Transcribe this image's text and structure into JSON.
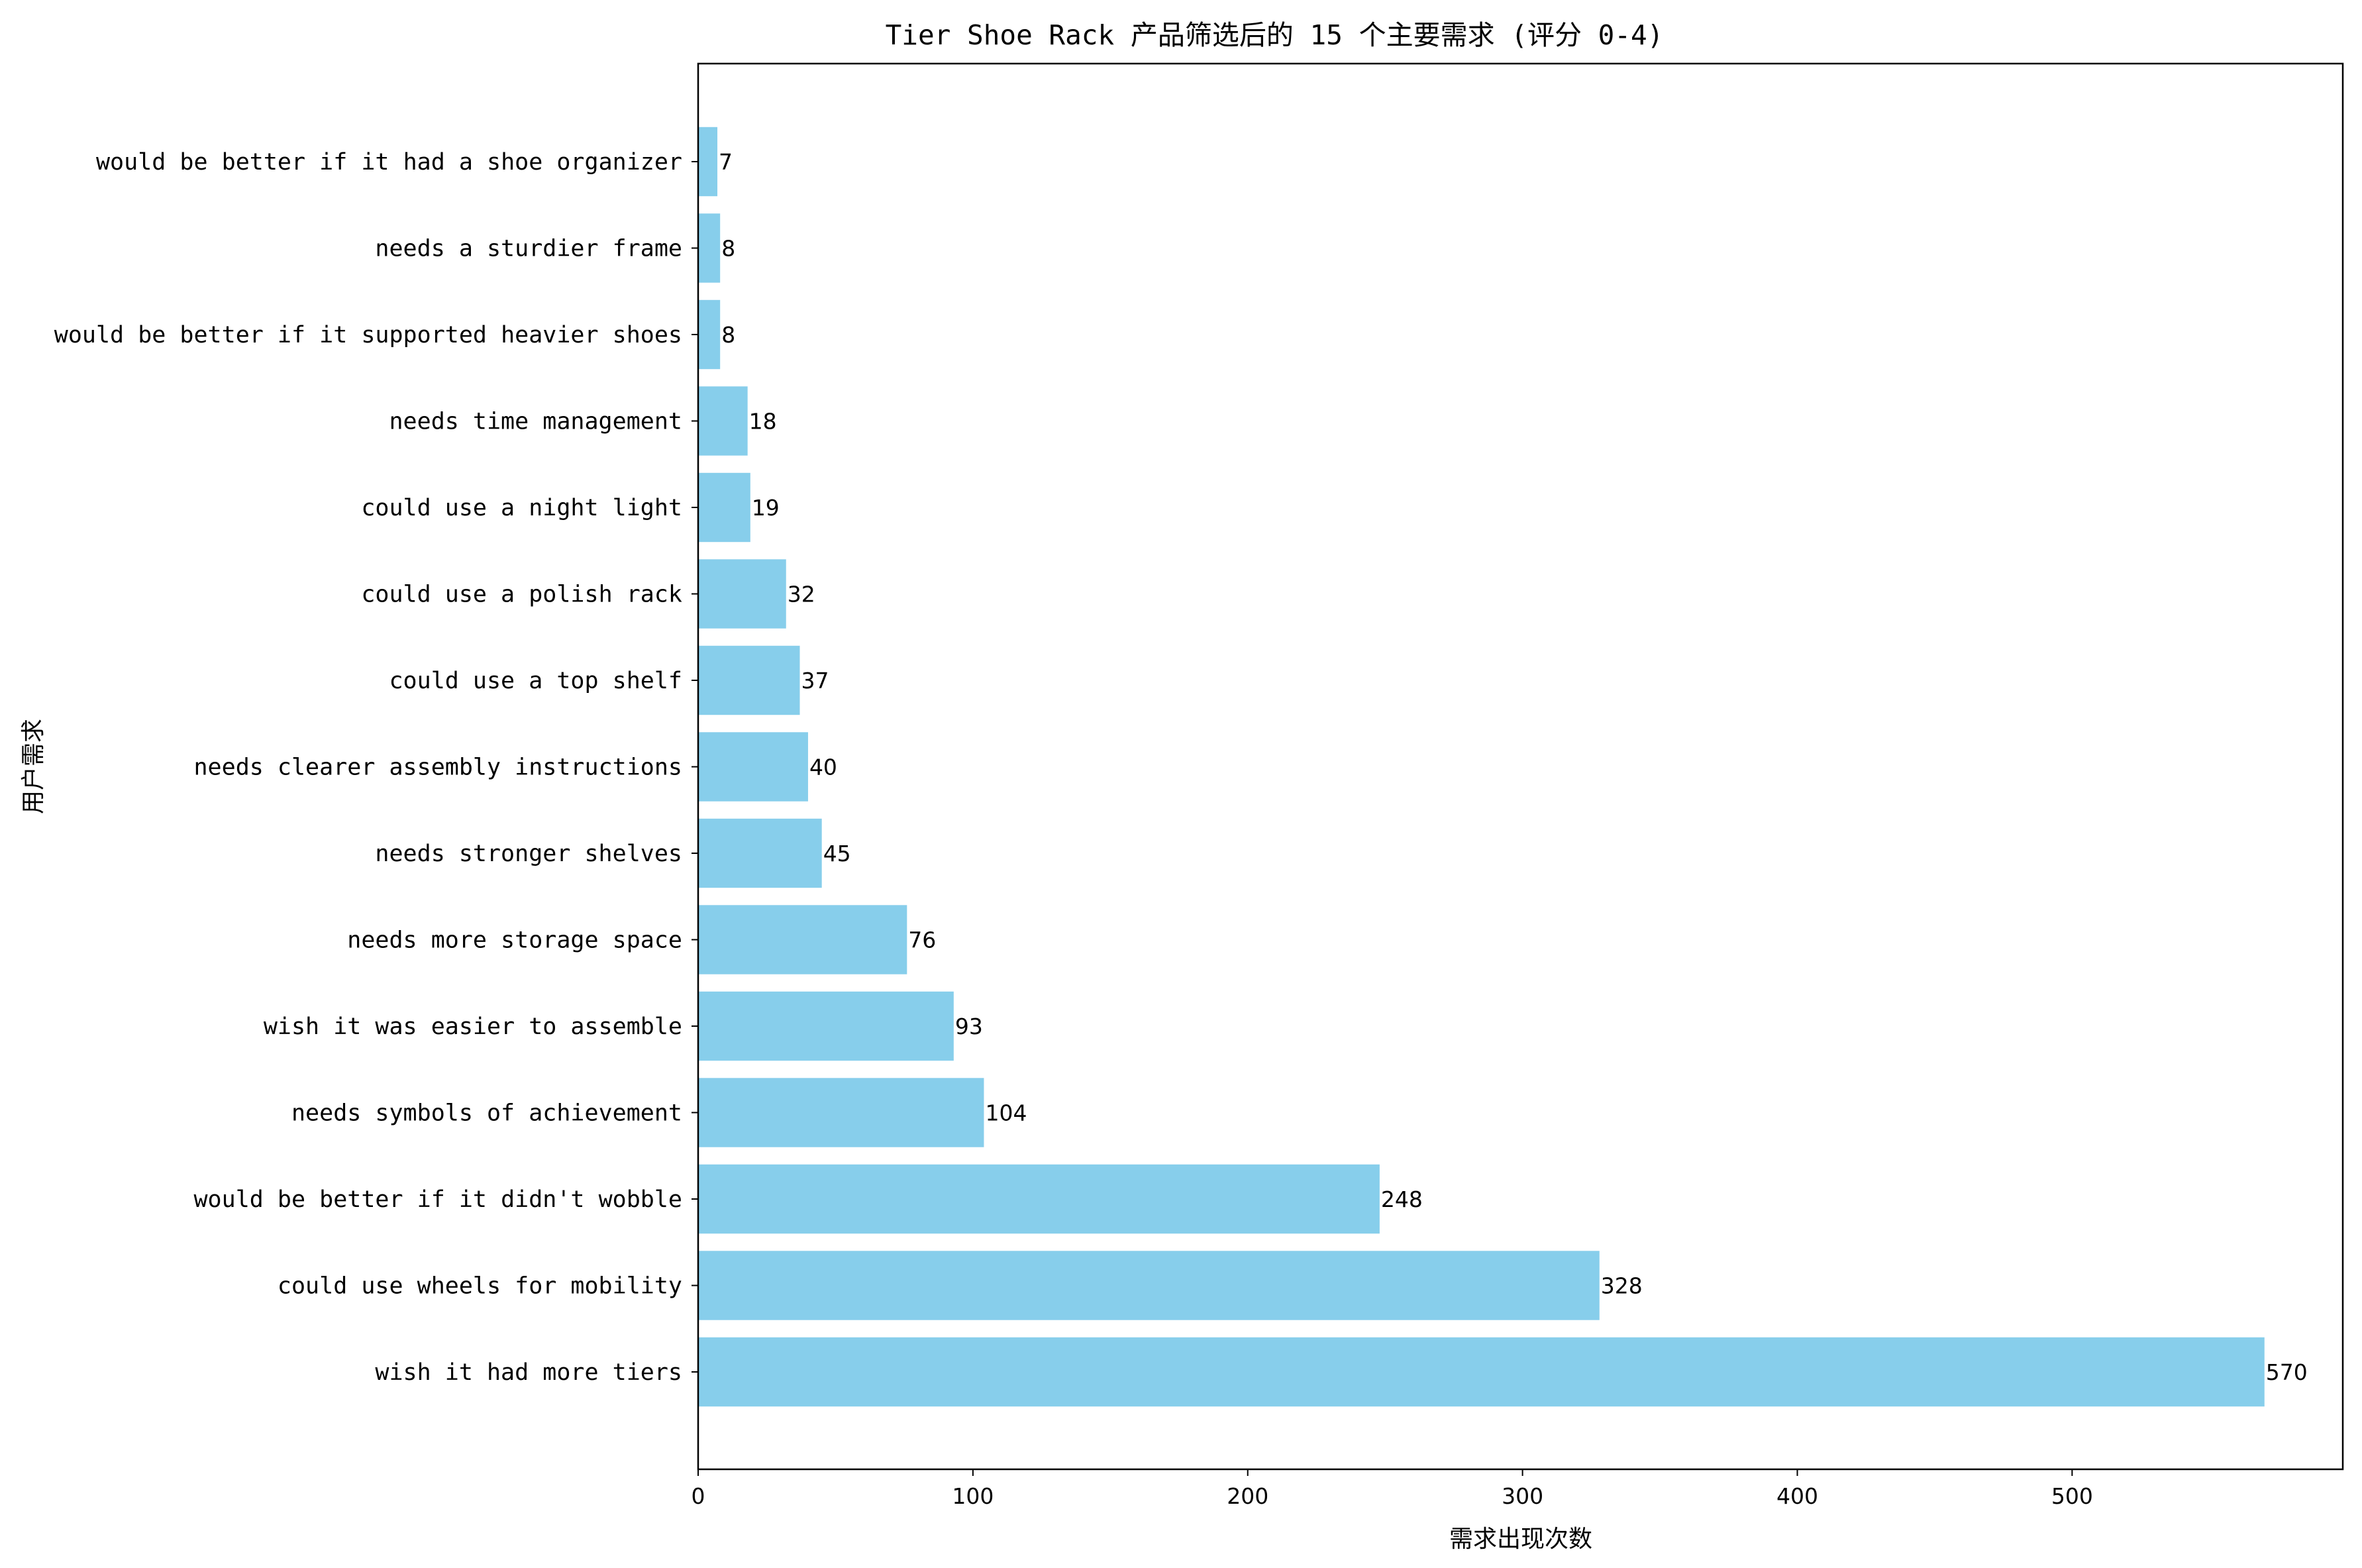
{
  "chart_data": {
    "type": "bar",
    "orientation": "horizontal",
    "title": "Tier Shoe Rack 产品筛选后的 15 个主要需求 (评分 0-4)",
    "xlabel": "需求出现次数",
    "ylabel": "用户需求",
    "categories": [
      "wish it had more tiers",
      "could use wheels for mobility",
      "would be better if it didn't wobble",
      "needs symbols of achievement",
      "wish it was easier to assemble",
      "needs more storage space",
      "needs stronger shelves",
      "needs clearer assembly instructions",
      "could use a top shelf",
      "could use a polish rack",
      "could use a night light",
      "needs time management",
      "would be better if it supported heavier shoes",
      "needs a sturdier frame",
      "would be better if it had a shoe organizer"
    ],
    "values": [
      570,
      328,
      248,
      104,
      93,
      76,
      45,
      40,
      37,
      32,
      19,
      18,
      8,
      8,
      7
    ],
    "xticks": [
      "0",
      "100",
      "200",
      "300",
      "400",
      "500"
    ],
    "xlim": [
      0,
      598.5
    ],
    "grid": false,
    "bar_color": "#87ceeb"
  }
}
